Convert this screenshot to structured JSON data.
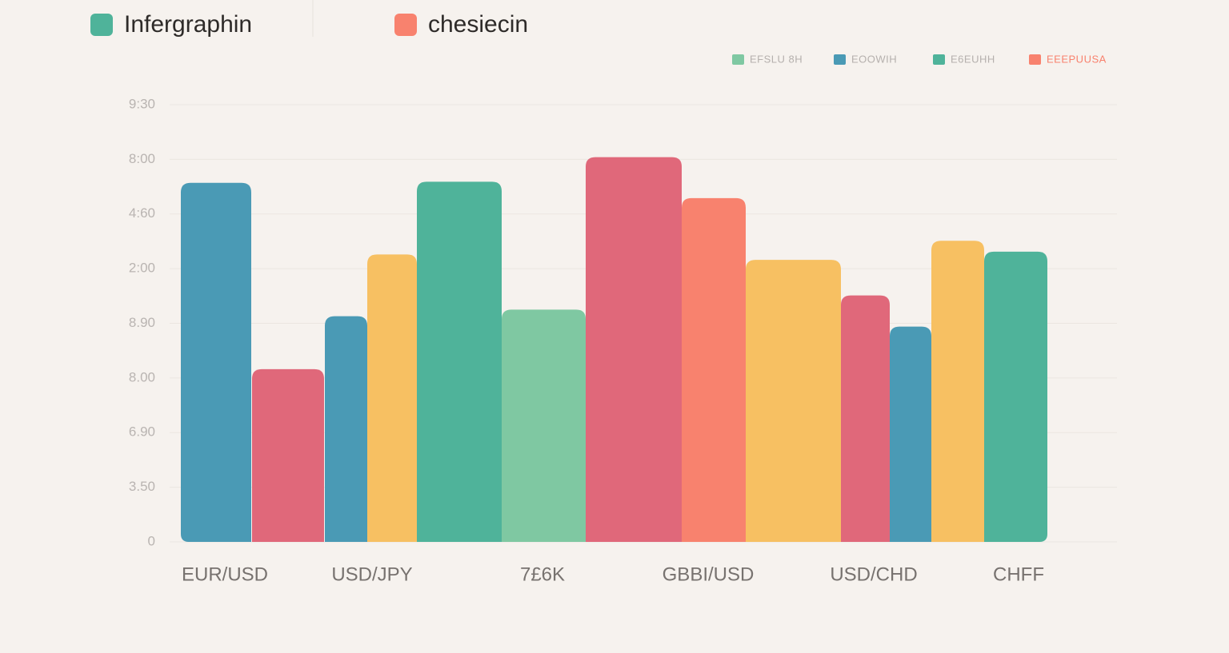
{
  "chart_data": {
    "type": "bar",
    "headers": [
      {
        "text": "Infergraphin",
        "color": "#4fb39a"
      },
      {
        "text": "chesiecin",
        "color": "#f8826e"
      }
    ],
    "legend": [
      {
        "name": "EFSLU 8H",
        "color": "#7fc8a2"
      },
      {
        "name": "EOOWIH",
        "color": "#4a9ab5"
      },
      {
        "name": "E6EUHH",
        "color": "#4fb39a"
      },
      {
        "name": "EEEPUUSA",
        "color": "#f8826e"
      }
    ],
    "categories": [
      "EUR/USD",
      null,
      null,
      "USD/JPY",
      null,
      "7£6K",
      null,
      "GBBI/USD",
      null,
      null,
      "USD/CHD",
      null,
      "CHFF"
    ],
    "values": [
      6.57,
      3.16,
      4.13,
      5.26,
      6.59,
      4.25,
      7.04,
      6.29,
      5.16,
      4.51,
      3.94,
      5.51,
      5.31
    ],
    "colors": [
      "#4a9ab5",
      "#e0687a",
      "#4a9ab5",
      "#f7c062",
      "#4fb39a",
      "#7fc8a2",
      "#e0687a",
      "#f8826e",
      "#f7c062",
      "#e0687a",
      "#4a9ab5",
      "#f7c062",
      "#4fb39a"
    ],
    "ylim": [
      0,
      8
    ],
    "yticks": [
      0,
      {
        "value": 1,
        "label": "3.50"
      },
      {
        "value": 2,
        "label": "6.90"
      },
      {
        "value": 3,
        "label": "8.00"
      },
      {
        "value": 4,
        "label": "8.90"
      },
      {
        "value": 5,
        "label": "2:00"
      },
      {
        "value": 6,
        "label": "4:60"
      },
      {
        "value": 7,
        "label": "8:00"
      },
      {
        "value": 8,
        "label": "9:30"
      }
    ],
    "grid": true
  }
}
